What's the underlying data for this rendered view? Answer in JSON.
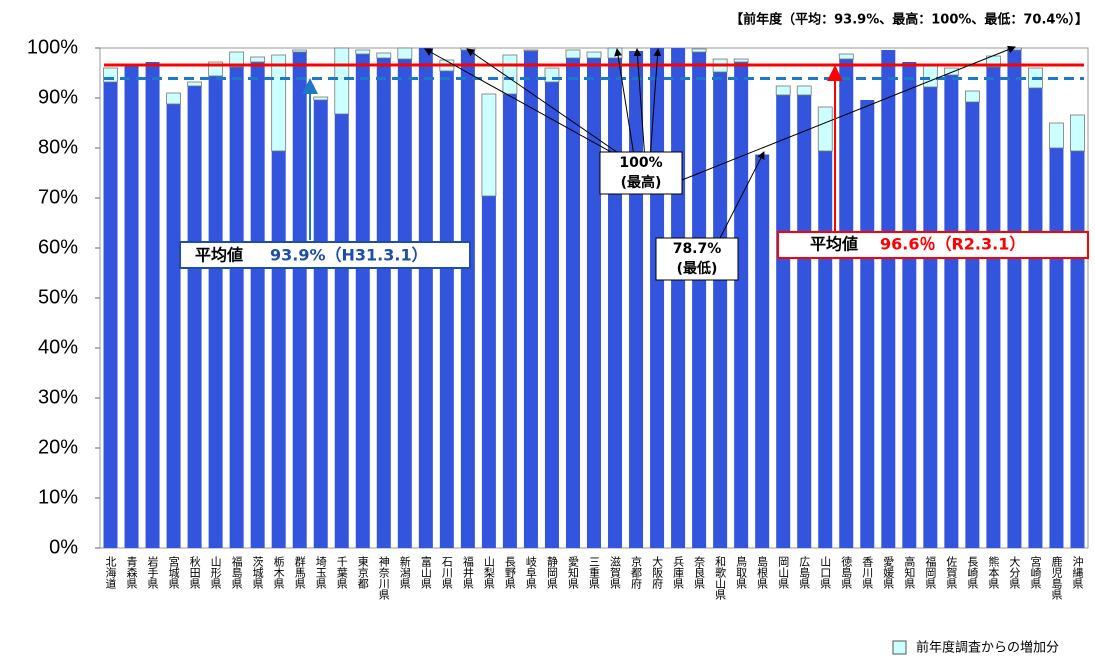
{
  "chart_data": {
    "type": "stacked_bar",
    "note": "【前年度（平均：93.9%、最高：100%、最低：70.4%）】",
    "categories": [
      "北海道",
      "青森県",
      "岩手県",
      "宮城県",
      "秋田県",
      "山形県",
      "福島県",
      "茨城県",
      "栃木県",
      "群馬県",
      "埼玉県",
      "千葉県",
      "東京都",
      "神奈川県",
      "新潟県",
      "富山県",
      "石川県",
      "福井県",
      "山梨県",
      "長野県",
      "岐阜県",
      "静岡県",
      "愛知県",
      "三重県",
      "滋賀県",
      "京都府",
      "大阪府",
      "兵庫県",
      "奈良県",
      "和歌山県",
      "鳥取県",
      "島根県",
      "岡山県",
      "広島県",
      "山口県",
      "徳島県",
      "香川県",
      "愛媛県",
      "高知県",
      "福岡県",
      "佐賀県",
      "長崎県",
      "熊本県",
      "大分県",
      "宮崎県",
      "鹿児島県",
      "沖縄県"
    ],
    "series": [
      {
        "color": "#3355dd",
        "values": [
          93.2,
          96.8,
          97.2,
          88.8,
          92.4,
          94.4,
          96.2,
          97.2,
          79.4,
          99.2,
          89.6,
          86.8,
          98.8,
          98.0,
          97.8,
          100,
          95.4,
          99.6,
          70.4,
          90.8,
          99.4,
          93.2,
          98.0,
          98.0,
          98.0,
          99.4,
          100,
          100,
          99.2,
          95.2,
          97.2,
          78.7,
          90.6,
          90.6,
          79.4,
          97.8,
          89.6,
          99.6,
          97.2,
          92.2,
          94.6,
          89.2,
          96.2,
          99.6,
          92.0,
          80.0,
          79.4
        ]
      },
      {
        "name": "前年度調査からの増加分",
        "color": "#ccffff",
        "values": [
          2.8,
          0,
          0,
          2.2,
          0.8,
          2.8,
          3.0,
          1.0,
          19.2,
          0.4,
          0.6,
          13.2,
          0.8,
          1.0,
          2.2,
          0,
          2.2,
          0.4,
          20.4,
          7.8,
          0.2,
          2.8,
          1.6,
          1.2,
          2.0,
          0,
          0,
          0,
          0.6,
          2.6,
          0.6,
          0,
          1.8,
          1.8,
          8.8,
          1.0,
          0,
          0,
          0,
          4.2,
          1.4,
          2.2,
          2.2,
          0.4,
          4.0,
          5.0,
          7.2
        ]
      }
    ],
    "ylim": [
      0,
      100
    ],
    "yticks": [
      {
        "value": 0,
        "label": "0%"
      },
      {
        "value": 10,
        "label": "10%"
      },
      {
        "value": 20,
        "label": "20%"
      },
      {
        "value": 30,
        "label": "30%"
      },
      {
        "value": 40,
        "label": "40%"
      },
      {
        "value": 50,
        "label": "50%"
      },
      {
        "value": 60,
        "label": "60%"
      },
      {
        "value": 70,
        "label": "70%"
      },
      {
        "value": 80,
        "label": "80%"
      },
      {
        "value": 90,
        "label": "90%"
      },
      {
        "value": 100,
        "label": "100%"
      }
    ],
    "grid": false,
    "reference_lines": [
      {
        "value": 96.6,
        "color": "#ff0000",
        "style": "solid"
      },
      {
        "value": 93.9,
        "color": "#1e78c8",
        "style": "dashed"
      }
    ],
    "annotations": {
      "prev_avg_label": "平均値",
      "prev_avg_value": "93.9%（H31.3.1）",
      "curr_avg_label": "平均値",
      "curr_avg_value": "96.6％（R2.3.1）",
      "max_value": "100%",
      "max_label": "(最高)",
      "min_value": "78.7%",
      "min_label": "(最低)"
    },
    "legend": "bottom-right"
  }
}
